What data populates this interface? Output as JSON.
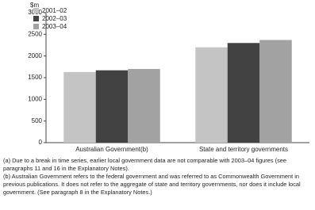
{
  "chart_data": {
    "type": "bar",
    "y_label": "$m",
    "categories": [
      "Australian Government(b)",
      "State and territory governments"
    ],
    "series": [
      {
        "name": "2001–02",
        "color": "#c4c4c4",
        "values": [
          1630,
          2200
        ]
      },
      {
        "name": "2002–03",
        "color": "#424242",
        "values": [
          1670,
          2300
        ]
      },
      {
        "name": "2003–04",
        "color": "#a2a2a2",
        "values": [
          1700,
          2370
        ]
      }
    ],
    "ylim": [
      0,
      3000
    ],
    "yticks": [
      0,
      500,
      1000,
      1500,
      2000,
      2500,
      3000
    ],
    "grid": false,
    "legend": "top-left",
    "notes": [
      "(a) Due to a break in time series, earlier local government data are not comparable with 2003–04 figures (see paragraphs 11 and 16 in the Explanatory Notes).",
      "(b) Australian Government refers to the federal government and was referred to as Commonwealth Government in previous publications. It does not refer to the aggregate of state and territory governments, nor does it include local government. (See paragraph 8 in the Explanatory Notes.)"
    ]
  }
}
